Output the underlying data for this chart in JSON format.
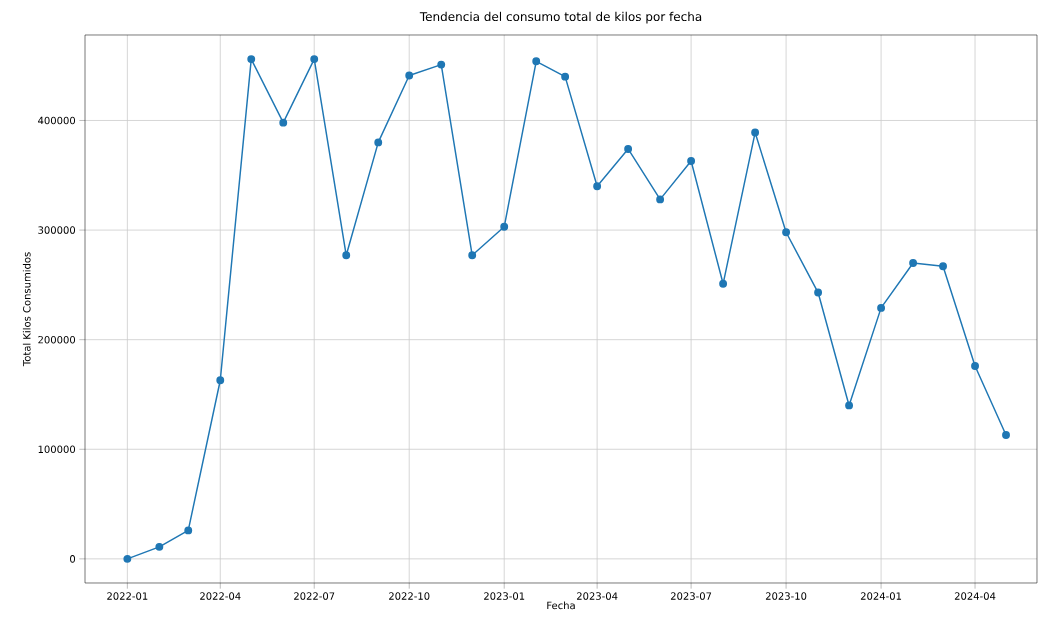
{
  "chart_data": {
    "type": "line",
    "title": "Tendencia del consumo total de kilos por fecha",
    "xlabel": "Fecha",
    "ylabel": "Total Kilos Consumidos",
    "x": [
      "2022-01",
      "2022-02",
      "2022-03",
      "2022-04",
      "2022-05",
      "2022-06",
      "2022-07",
      "2022-08",
      "2022-09",
      "2022-10",
      "2022-11",
      "2022-12",
      "2023-01",
      "2023-02",
      "2023-03",
      "2023-04",
      "2023-05",
      "2023-06",
      "2023-07",
      "2023-08",
      "2023-09",
      "2023-10",
      "2023-11",
      "2023-12",
      "2024-01",
      "2024-02",
      "2024-03",
      "2024-04",
      "2024-05"
    ],
    "series": [
      {
        "color": "#1f77b4",
        "values": [
          0,
          11000,
          26000,
          163000,
          456000,
          398000,
          456000,
          277000,
          380000,
          441000,
          451000,
          277000,
          303000,
          454000,
          440000,
          340000,
          374000,
          328000,
          363000,
          251000,
          389000,
          298000,
          243000,
          140000,
          229000,
          270000,
          267000,
          176000,
          113000
        ]
      }
    ],
    "xlim": [
      "2021-11-21",
      "2024-05-31"
    ],
    "ylim": [
      -22000,
      478000
    ],
    "xticks": [
      "2022-01",
      "2022-04",
      "2022-07",
      "2022-10",
      "2023-01",
      "2023-04",
      "2023-07",
      "2023-10",
      "2024-01",
      "2024-04"
    ],
    "yticks": [
      0,
      100000,
      200000,
      300000,
      400000
    ],
    "grid": true,
    "marker": "circle",
    "line_style": "solid"
  }
}
